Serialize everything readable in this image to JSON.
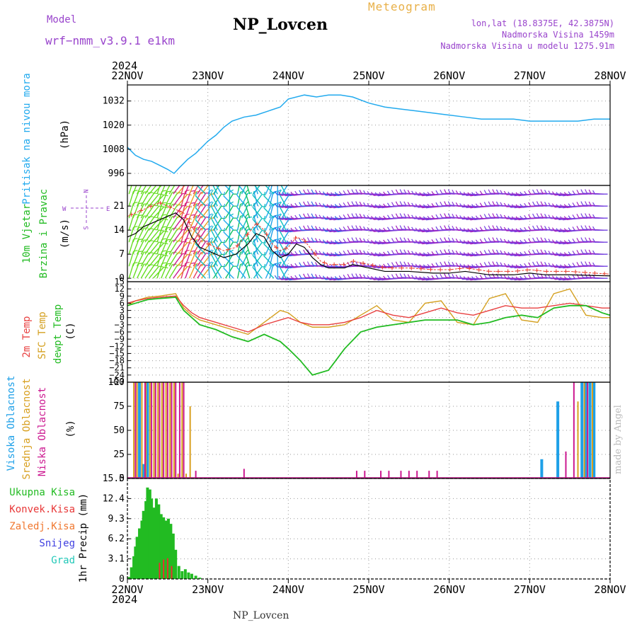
{
  "header": {
    "model_label": "Model",
    "model_name": "wrf−nmm_v3.9.1  e1km",
    "station": "NP_Lovcen",
    "meteogram_label": "Meteogram",
    "lonlat": "lon,lat (18.8375E, 42.3875N)",
    "elevation": "Nadmorska Visina 1459m",
    "model_elevation": "Nadmorska Visina u modelu 1275.91m",
    "year": "2024"
  },
  "footer": {
    "station": "NP_Lovcen",
    "year": "2024",
    "credit": "made by Angel"
  },
  "colors": {
    "pressure": "#22aaee",
    "temp2m": "#e84040",
    "sfc": "#d4a020",
    "dew": "#22bb22",
    "high": "#1ea0e8",
    "mid": "#d8a020",
    "low": "#cc1890",
    "precip": "#22bb22",
    "convective": "#e83030",
    "title_purple": "#9944cc",
    "meteogram_orange": "#e8b048"
  },
  "x_axis": {
    "labels": [
      "22NOV",
      "23NOV",
      "24NOV",
      "25NOV",
      "26NOV",
      "27NOV",
      "28NOV"
    ],
    "range_days": [
      0,
      6
    ]
  },
  "chart_data": [
    {
      "type": "line",
      "id": "pressure",
      "ylabel_1": "Pritisak na nivou mora",
      "ylabel_2": "(hPa)",
      "ylim": [
        990,
        1040
      ],
      "yticks": [
        1032,
        1020,
        1008,
        996
      ],
      "series": [
        {
          "x": [
            0,
            0.1,
            0.2,
            0.3,
            0.4,
            0.5,
            0.58,
            0.65,
            0.75,
            0.85,
            1.0,
            1.1,
            1.2,
            1.3,
            1.45,
            1.6,
            1.75,
            1.9,
            2.0,
            2.2,
            2.35,
            2.5,
            2.65,
            2.8,
            3.0,
            3.2,
            3.4,
            3.6,
            3.8,
            4.0,
            4.2,
            4.4,
            4.6,
            4.8,
            5.0,
            5.2,
            5.4,
            5.6,
            5.8,
            6.0
          ],
          "y": [
            1009,
            1005,
            1003,
            1002,
            1000,
            998,
            996,
            999,
            1003,
            1006,
            1012,
            1015,
            1019,
            1022,
            1024,
            1025,
            1027,
            1029,
            1033,
            1035,
            1034,
            1035,
            1035,
            1034,
            1031,
            1029,
            1028,
            1027,
            1026,
            1025,
            1024,
            1023,
            1023,
            1023,
            1022,
            1022,
            1022,
            1022,
            1023,
            1023
          ]
        }
      ]
    },
    {
      "type": "line",
      "id": "wind",
      "ylabel_1": "10m Vjetar",
      "ylabel_2": "Brzina i Pravac",
      "ylabel_3": "(m/s)",
      "ylim": [
        -1,
        27
      ],
      "yticks": [
        0,
        7,
        14,
        21
      ],
      "compass": {
        "north": "N",
        "south": "S",
        "east": "E",
        "west": "W"
      },
      "series": [
        {
          "name": "speed",
          "x": [
            0,
            0.1,
            0.2,
            0.3,
            0.4,
            0.5,
            0.6,
            0.7,
            0.8,
            0.9,
            1.0,
            1.1,
            1.2,
            1.35,
            1.5,
            1.6,
            1.7,
            1.8,
            1.9,
            2.0,
            2.1,
            2.2,
            2.3,
            2.4,
            2.5,
            2.6,
            2.7,
            2.8,
            3.0,
            3.2,
            3.5,
            3.8,
            4.0,
            4.2,
            4.5,
            4.8,
            5.0,
            5.2,
            5.5,
            5.8,
            6.0
          ],
          "y": [
            12,
            13,
            15,
            16,
            17,
            18,
            19,
            17,
            12,
            9,
            8,
            7,
            6,
            7,
            10,
            13,
            12,
            8,
            6,
            7,
            10,
            9,
            6,
            4,
            3,
            3,
            3,
            4,
            3,
            2,
            2,
            1.5,
            1.5,
            2,
            1,
            1,
            1.5,
            1,
            1,
            0.8,
            0.7
          ]
        },
        {
          "name": "gust",
          "x": [
            0,
            0.1,
            0.2,
            0.3,
            0.4,
            0.5,
            0.6,
            0.7,
            0.8,
            0.9,
            1.0,
            1.1,
            1.2,
            1.35,
            1.5,
            1.6,
            1.7,
            1.8,
            1.9,
            2.0,
            2.1,
            2.2,
            2.3,
            2.4,
            2.5,
            2.6,
            2.7,
            2.8,
            3.0,
            3.2,
            3.5,
            3.8,
            4.0,
            4.2,
            4.5,
            4.8,
            5.0,
            5.2,
            5.5,
            5.8,
            6.0
          ],
          "y": [
            18,
            19,
            20,
            21,
            22,
            21,
            20,
            19,
            15,
            12,
            10,
            9,
            8,
            9,
            13,
            16,
            14,
            10,
            8,
            9,
            12,
            11,
            8,
            5,
            4,
            4,
            4,
            5,
            4,
            3,
            3,
            2.5,
            2.5,
            3,
            2,
            2,
            2.5,
            2,
            2,
            1.5,
            1.2
          ]
        }
      ]
    },
    {
      "type": "line",
      "id": "temperature",
      "ylabel_1": "2m Temp",
      "ylabel_2": "SFC Temp",
      "ylabel_3": "dewpt Temp",
      "ylabel_4": "(C)",
      "ylim": [
        -27,
        15
      ],
      "yticks": [
        15,
        12,
        9,
        6,
        3,
        0,
        -3,
        -6,
        -9,
        -12,
        -15,
        -18,
        -21,
        -24,
        -27
      ],
      "ytick_labels": [
        "15",
        "12",
        "9",
        "6",
        "3",
        "0",
        "−3",
        "−6",
        "−9",
        "−12",
        "−15",
        "−18",
        "−21",
        "−24",
        "−27"
      ],
      "series": [
        {
          "name": "2m Temp",
          "x": [
            0,
            0.1,
            0.25,
            0.4,
            0.6,
            0.7,
            0.8,
            0.9,
            1.1,
            1.3,
            1.5,
            1.7,
            1.9,
            2.0,
            2.15,
            2.3,
            2.5,
            2.7,
            2.9,
            3.1,
            3.3,
            3.5,
            3.7,
            3.9,
            4.1,
            4.3,
            4.5,
            4.7,
            4.9,
            5.1,
            5.3,
            5.5,
            5.7,
            5.9,
            6.0
          ],
          "y": [
            6,
            7,
            8,
            8.5,
            9,
            5,
            2,
            0,
            -2,
            -4,
            -6,
            -3,
            -1,
            0,
            -2,
            -3,
            -3,
            -2,
            0,
            3,
            1,
            0,
            2,
            4,
            2,
            1,
            3,
            5,
            4,
            4,
            5,
            6,
            5,
            4,
            4
          ]
        },
        {
          "name": "SFC Temp",
          "x": [
            0,
            0.1,
            0.25,
            0.4,
            0.6,
            0.7,
            0.8,
            0.9,
            1.1,
            1.3,
            1.5,
            1.7,
            1.9,
            2.0,
            2.15,
            2.3,
            2.5,
            2.7,
            2.9,
            3.1,
            3.3,
            3.5,
            3.7,
            3.9,
            4.1,
            4.3,
            4.5,
            4.7,
            4.9,
            5.1,
            5.3,
            5.5,
            5.7,
            5.9,
            6.0
          ],
          "y": [
            5,
            7,
            8.5,
            9,
            10,
            4,
            1,
            -1,
            -3,
            -5,
            -7,
            -2,
            3,
            2,
            -2,
            -4,
            -4,
            -3,
            1,
            5,
            -1,
            -2,
            6,
            7,
            -2,
            -3,
            8,
            10,
            -1,
            -2,
            10,
            12,
            1,
            0,
            0
          ]
        },
        {
          "name": "dewpt Temp",
          "x": [
            0,
            0.1,
            0.25,
            0.4,
            0.6,
            0.7,
            0.8,
            0.9,
            1.1,
            1.3,
            1.5,
            1.7,
            1.9,
            2.0,
            2.15,
            2.3,
            2.5,
            2.7,
            2.9,
            3.1,
            3.3,
            3.5,
            3.7,
            3.9,
            4.1,
            4.3,
            4.5,
            4.7,
            4.9,
            5.1,
            5.3,
            5.5,
            5.7,
            5.9,
            6.0
          ],
          "y": [
            5,
            6,
            7.5,
            8,
            8.5,
            3,
            0,
            -3,
            -5,
            -8,
            -10,
            -7,
            -10,
            -13,
            -18,
            -24,
            -22,
            -13,
            -6,
            -4,
            -3,
            -2,
            -1,
            -1,
            -1,
            -3,
            -2,
            0,
            1,
            0,
            4,
            5,
            5,
            2,
            1
          ]
        }
      ]
    },
    {
      "type": "bar",
      "id": "clouds",
      "ylabel_1": "Visoka Oblacnost",
      "ylabel_2": "Srednja Oblacnost",
      "ylabel_3": "Niska Oblacnost",
      "ylabel_4": "(%)",
      "ylim": [
        0,
        100
      ],
      "yticks": [
        0,
        25,
        50,
        75,
        100
      ],
      "series": [
        {
          "name": "Visoka Oblacnost",
          "x": [
            0.15,
            0.2,
            0.25,
            5.15,
            5.35,
            5.65,
            5.7,
            5.75,
            5.8
          ],
          "values": [
            100,
            15,
            100,
            20,
            80,
            100,
            100,
            100,
            100
          ]
        },
        {
          "name": "Srednja Oblacnost",
          "x": [
            0.08,
            0.12,
            0.18,
            0.23,
            0.28,
            0.33,
            0.38,
            0.43,
            0.48,
            0.53,
            0.58,
            0.63,
            0.68,
            0.73,
            0.78,
            5.6,
            5.68,
            5.78
          ],
          "values": [
            100,
            100,
            100,
            100,
            100,
            100,
            100,
            100,
            100,
            100,
            100,
            5,
            100,
            5,
            75,
            80,
            100,
            100
          ]
        },
        {
          "name": "Niska Oblacnost",
          "x": [
            0.1,
            0.22,
            0.3,
            0.35,
            0.4,
            0.45,
            0.5,
            0.55,
            0.6,
            0.65,
            0.7,
            0.85,
            1.45,
            2.85,
            2.95,
            3.15,
            3.25,
            3.4,
            3.5,
            3.6,
            3.75,
            3.85,
            5.45,
            5.55,
            5.72
          ],
          "values": [
            100,
            100,
            100,
            100,
            100,
            100,
            100,
            100,
            100,
            100,
            100,
            8,
            10,
            8,
            8,
            8,
            8,
            8,
            8,
            8,
            8,
            8,
            28,
            100,
            100
          ]
        }
      ]
    },
    {
      "type": "bar",
      "id": "precip",
      "legend": [
        "Ukupna Kisa",
        "Konvek.Kisa",
        "Zaledj.Kisa",
        "Snijeg",
        "Grad"
      ],
      "ylabel_1": "1hr Precip (mm)",
      "ylim": [
        0,
        15.5
      ],
      "yticks": [
        0,
        3.1,
        6.2,
        9.3,
        12.4,
        15.5
      ],
      "series": [
        {
          "name": "Ukupna Kisa",
          "x": [
            0.02,
            0.05,
            0.08,
            0.1,
            0.12,
            0.15,
            0.18,
            0.2,
            0.23,
            0.25,
            0.28,
            0.3,
            0.33,
            0.36,
            0.39,
            0.42,
            0.45,
            0.48,
            0.51,
            0.54,
            0.57,
            0.6,
            0.64,
            0.68,
            0.72,
            0.76,
            0.8,
            0.85,
            0.9
          ],
          "values": [
            0.3,
            1.8,
            3.5,
            5.0,
            6.5,
            7.8,
            9.0,
            10.5,
            12.0,
            14.1,
            13.8,
            12.4,
            11.0,
            12.4,
            11.5,
            10.0,
            9.5,
            9.0,
            9.3,
            8.5,
            7.0,
            4.5,
            2.0,
            1.2,
            1.5,
            1.0,
            0.8,
            0.5,
            0.2
          ]
        },
        {
          "name": "Konvek.Kisa",
          "x": [
            0.4,
            0.45,
            0.5,
            0.55
          ],
          "values": [
            2.5,
            3.0,
            3.2,
            2.0
          ]
        }
      ]
    }
  ]
}
